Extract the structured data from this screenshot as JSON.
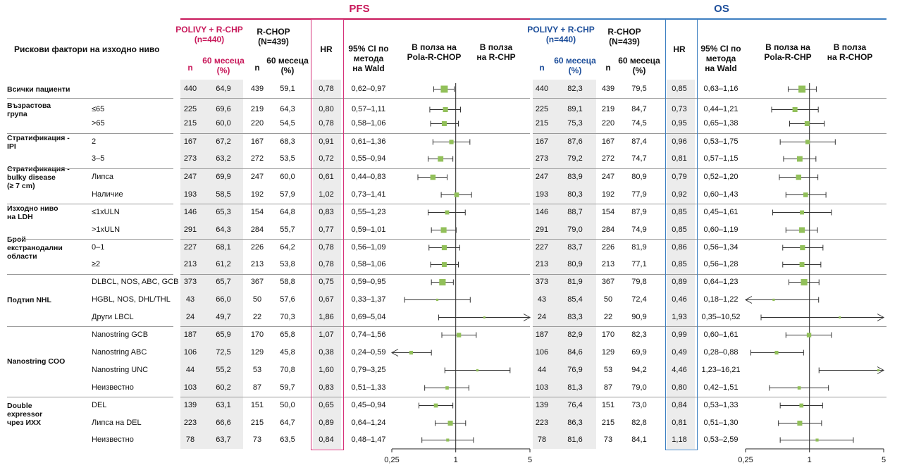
{
  "sections": {
    "pfs": "PFS",
    "os": "OS"
  },
  "header": {
    "risk_factors": "Рискови фактори на изходно ниво",
    "pfs": {
      "arm_a": [
        "POLIVY + R-CHP",
        "(n=440)"
      ],
      "arm_b": [
        "R-CHOP",
        "(N=439)"
      ],
      "n": "n",
      "pct_a": [
        "60 месеца",
        "(%)"
      ],
      "pct_b": [
        "60 месеца",
        "(%)"
      ],
      "hr": "HR",
      "ci": [
        "95% CI по",
        "метода",
        "на Wald"
      ],
      "favor_a": [
        "В полза на",
        "Pola-R-CHOP"
      ],
      "favor_b": [
        "В полза",
        "на R-CHP"
      ]
    },
    "os": {
      "arm_a": [
        "POLIVY + R-CHP",
        "(n=440)"
      ],
      "arm_b": [
        "R-CHOP",
        "(N=439)"
      ],
      "n": "n",
      "pct_a": [
        "60 месеца",
        "(%)"
      ],
      "pct_b": [
        "60 месеца",
        "(%)"
      ],
      "hr": "HR",
      "ci": [
        "95% CI по",
        "метода",
        "на Wald"
      ],
      "favor_a": [
        "В полза на",
        "Pola-R-CHP"
      ],
      "favor_b": [
        "В полза",
        "на R-CHOP"
      ]
    }
  },
  "groups": [
    {
      "label": [
        "Всички пациенти"
      ],
      "rows": [
        0
      ]
    },
    {
      "label": [
        "Възрастова",
        "група"
      ],
      "rows": [
        1,
        2
      ]
    },
    {
      "label": [
        "Стратификация -",
        "IPI"
      ],
      "rows": [
        3,
        4
      ]
    },
    {
      "label": [
        "Стратификация -",
        "bulky disease",
        "(≥ 7 cm)"
      ],
      "rows": [
        5,
        6
      ]
    },
    {
      "label": [
        "Изходно ниво",
        "на LDH"
      ],
      "rows": [
        7,
        8
      ]
    },
    {
      "label": [
        "Брой",
        "екстранодални",
        "области"
      ],
      "rows": [
        9,
        10
      ]
    },
    {
      "label": [
        "Подтип NHL"
      ],
      "rows": [
        11,
        12,
        13
      ]
    },
    {
      "label": [
        "Nanostring COO"
      ],
      "rows": [
        14,
        15,
        16,
        17
      ]
    },
    {
      "label": [
        "Double",
        "expressor",
        "чрез ИХХ"
      ],
      "rows": [
        18,
        19,
        20
      ]
    }
  ],
  "chart_data": [
    {
      "type": "forest",
      "title": "PFS",
      "x_ticks": [
        "0,25",
        "1",
        "5"
      ],
      "xlim": [
        0.25,
        5
      ],
      "scale": "log",
      "rows": [
        {
          "sub": "",
          "n_a": "440",
          "pct_a": "64,9",
          "n_b": "439",
          "pct_b": "59,1",
          "hr": 0.78,
          "hr_text": "0,78",
          "lo": 0.62,
          "hi": 0.97,
          "ci_text": "0,62–0,97"
        },
        {
          "sub": "≤65",
          "n_a": "225",
          "pct_a": "69,6",
          "n_b": "219",
          "pct_b": "64,3",
          "hr": 0.8,
          "hr_text": "0,80",
          "lo": 0.57,
          "hi": 1.11,
          "ci_text": "0,57–1,11"
        },
        {
          "sub": ">65",
          "n_a": "215",
          "pct_a": "60,0",
          "n_b": "220",
          "pct_b": "54,5",
          "hr": 0.78,
          "hr_text": "0,78",
          "lo": 0.58,
          "hi": 1.06,
          "ci_text": "0,58–1,06"
        },
        {
          "sub": "2",
          "n_a": "167",
          "pct_a": "67,2",
          "n_b": "167",
          "pct_b": "68,3",
          "hr": 0.91,
          "hr_text": "0,91",
          "lo": 0.61,
          "hi": 1.36,
          "ci_text": "0,61–1,36"
        },
        {
          "sub": "3–5",
          "n_a": "273",
          "pct_a": "63,2",
          "n_b": "272",
          "pct_b": "53,5",
          "hr": 0.72,
          "hr_text": "0,72",
          "lo": 0.55,
          "hi": 0.94,
          "ci_text": "0,55–0,94"
        },
        {
          "sub": "Липса",
          "n_a": "247",
          "pct_a": "69,9",
          "n_b": "247",
          "pct_b": "60,0",
          "hr": 0.61,
          "hr_text": "0,61",
          "lo": 0.44,
          "hi": 0.83,
          "ci_text": "0,44–0,83"
        },
        {
          "sub": "Наличие",
          "n_a": "193",
          "pct_a": "58,5",
          "n_b": "192",
          "pct_b": "57,9",
          "hr": 1.02,
          "hr_text": "1,02",
          "lo": 0.73,
          "hi": 1.41,
          "ci_text": "0,73–1,41"
        },
        {
          "sub": "≤1xULN",
          "n_a": "146",
          "pct_a": "65,3",
          "n_b": "154",
          "pct_b": "64,8",
          "hr": 0.83,
          "hr_text": "0,83",
          "lo": 0.55,
          "hi": 1.23,
          "ci_text": "0,55–1,23"
        },
        {
          "sub": ">1xULN",
          "n_a": "291",
          "pct_a": "64,3",
          "n_b": "284",
          "pct_b": "55,7",
          "hr": 0.77,
          "hr_text": "0,77",
          "lo": 0.59,
          "hi": 1.01,
          "ci_text": "0,59–1,01"
        },
        {
          "sub": "0–1",
          "n_a": "227",
          "pct_a": "68,1",
          "n_b": "226",
          "pct_b": "64,2",
          "hr": 0.78,
          "hr_text": "0,78",
          "lo": 0.56,
          "hi": 1.09,
          "ci_text": "0,56–1,09"
        },
        {
          "sub": "≥2",
          "n_a": "213",
          "pct_a": "61,2",
          "n_b": "213",
          "pct_b": "53,8",
          "hr": 0.78,
          "hr_text": "0,78",
          "lo": 0.58,
          "hi": 1.06,
          "ci_text": "0,58–1,06"
        },
        {
          "sub": "DLBCL, NOS, ABC, GCB",
          "n_a": "373",
          "pct_a": "65,7",
          "n_b": "367",
          "pct_b": "58,8",
          "hr": 0.75,
          "hr_text": "0,75",
          "lo": 0.59,
          "hi": 0.95,
          "ci_text": "0,59–0,95"
        },
        {
          "sub": "HGBL, NOS, DHL/THL",
          "n_a": "43",
          "pct_a": "66,0",
          "n_b": "50",
          "pct_b": "57,6",
          "hr": 0.67,
          "hr_text": "0,67",
          "lo": 0.33,
          "hi": 1.37,
          "ci_text": "0,33–1,37"
        },
        {
          "sub": "Други LBCL",
          "n_a": "24",
          "pct_a": "49,7",
          "n_b": "22",
          "pct_b": "70,3",
          "hr": 1.86,
          "hr_text": "1,86",
          "lo": 0.69,
          "hi": 5.04,
          "ci_text": "0,69–5,04"
        },
        {
          "sub": "Nanostring GCB",
          "n_a": "187",
          "pct_a": "65,9",
          "n_b": "170",
          "pct_b": "65,8",
          "hr": 1.07,
          "hr_text": "1,07",
          "lo": 0.74,
          "hi": 1.56,
          "ci_text": "0,74–1,56"
        },
        {
          "sub": "Nanostring ABC",
          "n_a": "106",
          "pct_a": "72,5",
          "n_b": "129",
          "pct_b": "45,8",
          "hr": 0.38,
          "hr_text": "0,38",
          "lo": 0.24,
          "hi": 0.59,
          "ci_text": "0,24–0,59"
        },
        {
          "sub": "Nanostring UNC",
          "n_a": "44",
          "pct_a": "55,2",
          "n_b": "53",
          "pct_b": "70,8",
          "hr": 1.6,
          "hr_text": "1,60",
          "lo": 0.79,
          "hi": 3.25,
          "ci_text": "0,79–3,25"
        },
        {
          "sub": "Неизвестно",
          "n_a": "103",
          "pct_a": "60,2",
          "n_b": "87",
          "pct_b": "59,7",
          "hr": 0.83,
          "hr_text": "0,83",
          "lo": 0.51,
          "hi": 1.33,
          "ci_text": "0,51–1,33"
        },
        {
          "sub": "DEL",
          "n_a": "139",
          "pct_a": "63,1",
          "n_b": "151",
          "pct_b": "50,0",
          "hr": 0.65,
          "hr_text": "0,65",
          "lo": 0.45,
          "hi": 0.94,
          "ci_text": "0,45–0,94"
        },
        {
          "sub": "Липса на DEL",
          "n_a": "223",
          "pct_a": "66,6",
          "n_b": "215",
          "pct_b": "64,7",
          "hr": 0.89,
          "hr_text": "0,89",
          "lo": 0.64,
          "hi": 1.24,
          "ci_text": "0,64–1,24"
        },
        {
          "sub": "Неизвестно",
          "n_a": "78",
          "pct_a": "63,7",
          "n_b": "73",
          "pct_b": "63,5",
          "hr": 0.84,
          "hr_text": "0,84",
          "lo": 0.48,
          "hi": 1.47,
          "ci_text": "0,48–1,47"
        }
      ]
    },
    {
      "type": "forest",
      "title": "OS",
      "x_ticks": [
        "0,25",
        "1",
        "5"
      ],
      "xlim": [
        0.25,
        5
      ],
      "scale": "log",
      "rows": [
        {
          "n_a": "440",
          "pct_a": "82,3",
          "n_b": "439",
          "pct_b": "79,5",
          "hr": 0.85,
          "hr_text": "0,85",
          "lo": 0.63,
          "hi": 1.16,
          "ci_text": "0,63–1,16"
        },
        {
          "n_a": "225",
          "pct_a": "89,1",
          "n_b": "219",
          "pct_b": "84,7",
          "hr": 0.73,
          "hr_text": "0,73",
          "lo": 0.44,
          "hi": 1.21,
          "ci_text": "0,44–1,21"
        },
        {
          "n_a": "215",
          "pct_a": "75,3",
          "n_b": "220",
          "pct_b": "74,5",
          "hr": 0.95,
          "hr_text": "0,95",
          "lo": 0.65,
          "hi": 1.38,
          "ci_text": "0,65–1,38"
        },
        {
          "n_a": "167",
          "pct_a": "87,6",
          "n_b": "167",
          "pct_b": "87,4",
          "hr": 0.96,
          "hr_text": "0,96",
          "lo": 0.53,
          "hi": 1.75,
          "ci_text": "0,53–1,75"
        },
        {
          "n_a": "273",
          "pct_a": "79,2",
          "n_b": "272",
          "pct_b": "74,7",
          "hr": 0.81,
          "hr_text": "0,81",
          "lo": 0.57,
          "hi": 1.15,
          "ci_text": "0,57–1,15"
        },
        {
          "n_a": "247",
          "pct_a": "83,9",
          "n_b": "247",
          "pct_b": "80,9",
          "hr": 0.79,
          "hr_text": "0,79",
          "lo": 0.52,
          "hi": 1.2,
          "ci_text": "0,52–1,20"
        },
        {
          "n_a": "193",
          "pct_a": "80,3",
          "n_b": "192",
          "pct_b": "77,9",
          "hr": 0.92,
          "hr_text": "0,92",
          "lo": 0.6,
          "hi": 1.43,
          "ci_text": "0,60–1,43"
        },
        {
          "n_a": "146",
          "pct_a": "88,7",
          "n_b": "154",
          "pct_b": "87,9",
          "hr": 0.85,
          "hr_text": "0,85",
          "lo": 0.45,
          "hi": 1.61,
          "ci_text": "0,45–1,61"
        },
        {
          "n_a": "291",
          "pct_a": "79,0",
          "n_b": "284",
          "pct_b": "74,9",
          "hr": 0.85,
          "hr_text": "0,85",
          "lo": 0.6,
          "hi": 1.19,
          "ci_text": "0,60–1,19"
        },
        {
          "n_a": "227",
          "pct_a": "83,7",
          "n_b": "226",
          "pct_b": "81,9",
          "hr": 0.86,
          "hr_text": "0,86",
          "lo": 0.56,
          "hi": 1.34,
          "ci_text": "0,56–1,34"
        },
        {
          "n_a": "213",
          "pct_a": "80,9",
          "n_b": "213",
          "pct_b": "77,1",
          "hr": 0.85,
          "hr_text": "0,85",
          "lo": 0.56,
          "hi": 1.28,
          "ci_text": "0,56–1,28"
        },
        {
          "n_a": "373",
          "pct_a": "81,9",
          "n_b": "367",
          "pct_b": "79,8",
          "hr": 0.89,
          "hr_text": "0,89",
          "lo": 0.64,
          "hi": 1.23,
          "ci_text": "0,64–1,23"
        },
        {
          "n_a": "43",
          "pct_a": "85,4",
          "n_b": "50",
          "pct_b": "72,4",
          "hr": 0.46,
          "hr_text": "0,46",
          "lo": 0.18,
          "hi": 1.22,
          "ci_text": "0,18–1,22"
        },
        {
          "n_a": "24",
          "pct_a": "83,3",
          "n_b": "22",
          "pct_b": "90,9",
          "hr": 1.93,
          "hr_text": "1,93",
          "lo": 0.35,
          "hi": 10.52,
          "ci_text": "0,35–10,52"
        },
        {
          "n_a": "187",
          "pct_a": "82,9",
          "n_b": "170",
          "pct_b": "82,3",
          "hr": 0.99,
          "hr_text": "0,99",
          "lo": 0.6,
          "hi": 1.61,
          "ci_text": "0,60–1,61"
        },
        {
          "n_a": "106",
          "pct_a": "84,6",
          "n_b": "129",
          "pct_b": "69,9",
          "hr": 0.49,
          "hr_text": "0,49",
          "lo": 0.28,
          "hi": 0.88,
          "ci_text": "0,28–0,88"
        },
        {
          "n_a": "44",
          "pct_a": "76,9",
          "n_b": "53",
          "pct_b": "94,2",
          "hr": 4.46,
          "hr_text": "4,46",
          "lo": 1.23,
          "hi": 16.21,
          "ci_text": "1,23–16,21"
        },
        {
          "n_a": "103",
          "pct_a": "81,3",
          "n_b": "87",
          "pct_b": "79,0",
          "hr": 0.8,
          "hr_text": "0,80",
          "lo": 0.42,
          "hi": 1.51,
          "ci_text": "0,42–1,51"
        },
        {
          "n_a": "139",
          "pct_a": "76,4",
          "n_b": "151",
          "pct_b": "73,0",
          "hr": 0.84,
          "hr_text": "0,84",
          "lo": 0.53,
          "hi": 1.33,
          "ci_text": "0,53–1,33"
        },
        {
          "n_a": "223",
          "pct_a": "86,3",
          "n_b": "215",
          "pct_b": "82,8",
          "hr": 0.81,
          "hr_text": "0,81",
          "lo": 0.51,
          "hi": 1.3,
          "ci_text": "0,51–1,30"
        },
        {
          "n_a": "78",
          "pct_a": "81,6",
          "n_b": "73",
          "pct_b": "84,1",
          "hr": 1.18,
          "hr_text": "1,18",
          "lo": 0.53,
          "hi": 2.59,
          "ci_text": "0,53–2,59"
        }
      ]
    }
  ],
  "colors": {
    "pfs": "#c8185a",
    "os": "#1d4e9a",
    "marker": "#92c05a",
    "shade": "#ececec"
  }
}
